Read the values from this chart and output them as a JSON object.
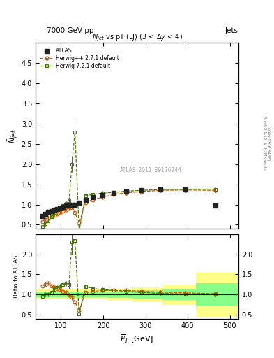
{
  "title_top_left": "7000 GeV pp",
  "title_top_right": "Jets",
  "plot_title": "$N_{jet}$ vs pT (LJ) (3 < $\\Delta y$ < 4)",
  "ylabel_main": "$\\bar{N}_{jet}$",
  "ylabel_ratio": "Ratio to ATLAS",
  "xlabel": "$\\overline{P}_T$ [GeV]",
  "watermark": "ATLAS_2011_S9126244",
  "right_label1": "Rivet 3.1.10, ≥ 3.3M events",
  "right_label2": "[arXiv:1306.3436]",
  "atlas_x": [
    56,
    63,
    70,
    77,
    84,
    91,
    98,
    105,
    112,
    119,
    126,
    133,
    143,
    158,
    175,
    198,
    225,
    255,
    290,
    335,
    395,
    465
  ],
  "atlas_y": [
    0.72,
    0.77,
    0.82,
    0.84,
    0.87,
    0.89,
    0.91,
    0.94,
    0.97,
    1.0,
    1.0,
    1.0,
    1.05,
    1.12,
    1.18,
    1.24,
    1.28,
    1.32,
    1.35,
    1.37,
    1.38,
    0.97
  ],
  "herwig1_x": [
    56,
    63,
    70,
    77,
    84,
    91,
    98,
    105,
    112,
    119,
    126,
    133,
    143,
    158,
    175,
    198,
    225,
    255,
    290,
    335,
    395,
    465
  ],
  "herwig1_y": [
    0.58,
    0.63,
    0.67,
    0.71,
    0.74,
    0.77,
    0.8,
    0.84,
    0.87,
    0.9,
    0.93,
    0.8,
    0.55,
    1.05,
    1.12,
    1.18,
    1.25,
    1.29,
    1.32,
    1.35,
    1.36,
    1.35
  ],
  "herwig1_yerr": [
    0.04,
    0.04,
    0.04,
    0.04,
    0.04,
    0.04,
    0.04,
    0.04,
    0.04,
    0.04,
    0.05,
    0.08,
    0.12,
    0.05,
    0.05,
    0.05,
    0.05,
    0.05,
    0.05,
    0.05,
    0.05,
    0.05
  ],
  "herwig2_x": [
    56,
    63,
    70,
    77,
    84,
    91,
    98,
    105,
    112,
    119,
    126,
    133,
    143,
    158,
    175,
    198,
    225,
    255,
    290,
    335,
    395,
    465
  ],
  "herwig2_y": [
    0.45,
    0.52,
    0.6,
    0.7,
    0.8,
    0.88,
    0.93,
    0.97,
    1.02,
    1.1,
    2.0,
    2.8,
    0.35,
    1.22,
    1.25,
    1.28,
    1.3,
    1.33,
    1.35,
    1.37,
    1.38,
    1.38
  ],
  "herwig2_yerr": [
    0.04,
    0.04,
    0.04,
    0.04,
    0.04,
    0.04,
    0.04,
    0.04,
    0.05,
    0.08,
    0.2,
    0.3,
    0.2,
    0.08,
    0.05,
    0.05,
    0.05,
    0.05,
    0.05,
    0.05,
    0.05,
    0.05
  ],
  "herwig1_ratio_x": [
    56,
    63,
    70,
    77,
    84,
    91,
    98,
    105,
    112,
    119,
    126,
    133,
    143,
    158,
    175,
    198,
    225,
    255,
    290,
    335,
    395,
    465
  ],
  "herwig1_ratio": [
    1.22,
    1.25,
    1.28,
    1.22,
    1.18,
    1.15,
    1.12,
    1.08,
    1.05,
    0.98,
    0.93,
    0.82,
    0.6,
    1.05,
    1.08,
    1.1,
    1.1,
    1.1,
    1.08,
    1.06,
    1.04,
    1.02
  ],
  "herwig1_ratio_err": [
    0.05,
    0.05,
    0.05,
    0.05,
    0.05,
    0.05,
    0.05,
    0.05,
    0.05,
    0.05,
    0.06,
    0.08,
    0.12,
    0.06,
    0.05,
    0.05,
    0.05,
    0.05,
    0.05,
    0.05,
    0.05,
    0.05
  ],
  "herwig2_ratio_x": [
    56,
    63,
    70,
    77,
    84,
    91,
    98,
    105,
    112,
    119,
    126,
    133,
    143,
    158,
    175,
    198,
    225,
    255,
    290,
    335,
    395,
    465
  ],
  "herwig2_ratio": [
    0.95,
    1.0,
    1.0,
    1.05,
    1.12,
    1.18,
    1.22,
    1.25,
    1.28,
    1.25,
    2.3,
    2.35,
    0.52,
    1.2,
    1.15,
    1.12,
    1.1,
    1.08,
    1.05,
    1.03,
    1.01,
    1.0
  ],
  "herwig2_ratio_err": [
    0.05,
    0.05,
    0.05,
    0.05,
    0.05,
    0.05,
    0.05,
    0.05,
    0.06,
    0.1,
    0.3,
    0.35,
    0.25,
    0.1,
    0.06,
    0.05,
    0.05,
    0.05,
    0.05,
    0.05,
    0.05,
    0.05
  ],
  "band_edges": [
    40,
    160,
    210,
    270,
    340,
    420,
    520
  ],
  "band_yellow_lo": [
    0.88,
    0.88,
    0.85,
    0.82,
    0.75,
    0.45,
    0.45
  ],
  "band_yellow_hi": [
    1.12,
    1.12,
    1.15,
    1.18,
    1.25,
    1.55,
    1.55
  ],
  "band_green_lo": [
    0.93,
    0.93,
    0.92,
    0.9,
    0.87,
    0.72,
    0.72
  ],
  "band_green_hi": [
    1.07,
    1.07,
    1.08,
    1.1,
    1.13,
    1.28,
    1.28
  ],
  "ylim_main": [
    0.4,
    5.0
  ],
  "ylim_ratio": [
    0.4,
    2.5
  ],
  "xlim": [
    40,
    520
  ],
  "xticks": [
    100,
    200,
    300,
    400,
    500
  ],
  "yticks_main": [
    0.5,
    1.0,
    1.5,
    2.0,
    2.5,
    3.0,
    3.5,
    4.0,
    4.5
  ],
  "yticks_ratio": [
    0.5,
    1.0,
    1.5,
    2.0
  ],
  "color_atlas": "#222222",
  "color_herwig1": "#cc5500",
  "color_herwig2": "#447700",
  "color_yellow": "#ffff88",
  "color_green": "#88ff88",
  "atlas_label": "ATLAS",
  "herwig1_label": "Herwig++ 2.7.1 default",
  "herwig2_label": "Herwig 7.2.1 default"
}
